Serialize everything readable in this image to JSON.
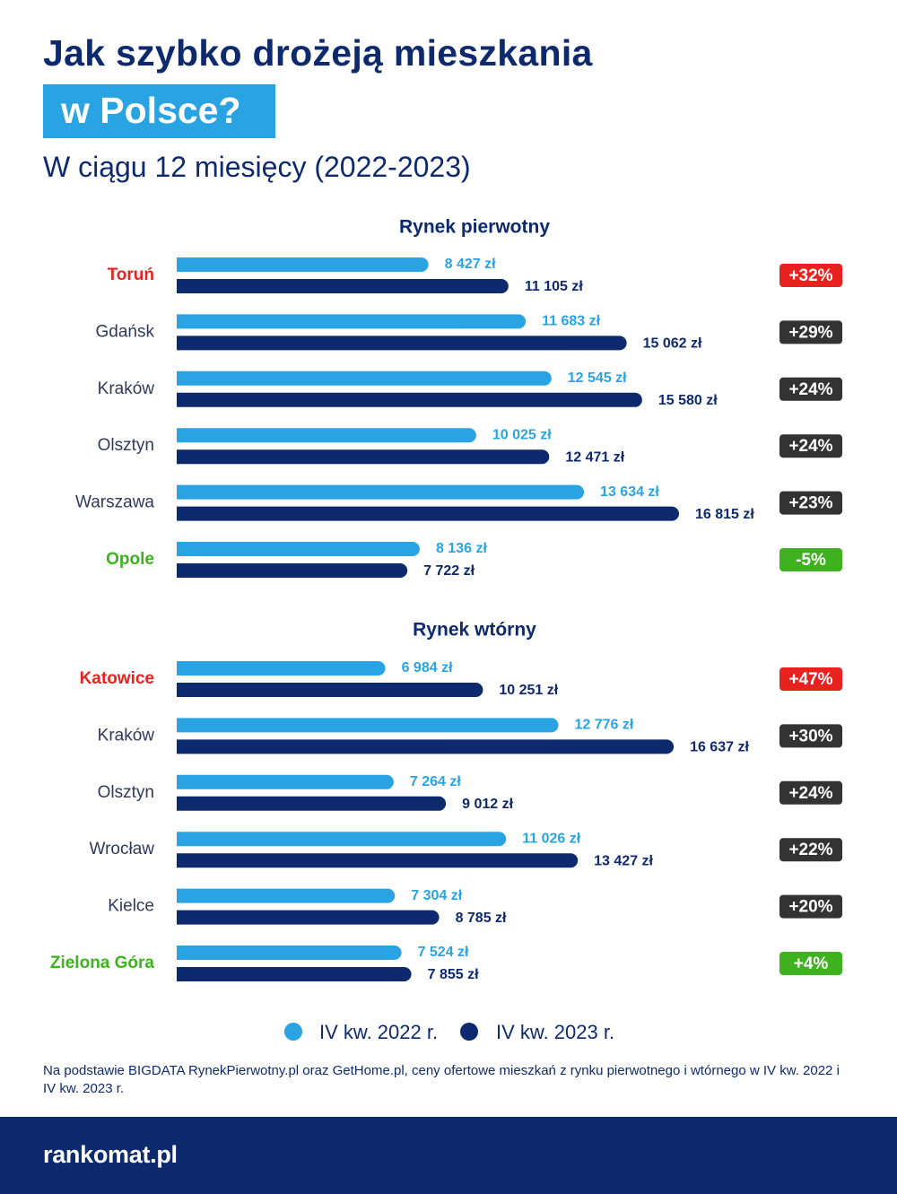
{
  "header": {
    "title_line1": "Jak szybko drożeją mieszkania",
    "title_line2": "w Polsce?",
    "subtitle": "W ciągu 12 miesięcy (2022-2023)"
  },
  "colors": {
    "bar_2022": "#2aa3e3",
    "bar_2023": "#0e2a6e",
    "highlight_up": "#e8231f",
    "highlight_down": "#3fb21f",
    "badge_neutral": "#333333"
  },
  "chart_data": {
    "type": "bar",
    "orientation": "horizontal",
    "value_unit": "zł",
    "legend": [
      "IV kw. 2022 r.",
      "IV kw. 2023 r."
    ],
    "groups": [
      {
        "title": "Rynek pierwotny",
        "rows": [
          {
            "city": "Toruń",
            "v2022": 8427,
            "v2023": 11105,
            "label2022": "8 427 zł",
            "label2023": "11 105 zł",
            "change": "+32%",
            "highlight": "up"
          },
          {
            "city": "Gdańsk",
            "v2022": 11683,
            "v2023": 15062,
            "label2022": "11 683 zł",
            "label2023": "15 062 zł",
            "change": "+29%",
            "highlight": "none"
          },
          {
            "city": "Kraków",
            "v2022": 12545,
            "v2023": 15580,
            "label2022": "12 545 zł",
            "label2023": "15 580 zł",
            "change": "+24%",
            "highlight": "none"
          },
          {
            "city": "Olsztyn",
            "v2022": 10025,
            "v2023": 12471,
            "label2022": "10 025 zł",
            "label2023": "12 471 zł",
            "change": "+24%",
            "highlight": "none"
          },
          {
            "city": "Warszawa",
            "v2022": 13634,
            "v2023": 16815,
            "label2022": "13 634 zł",
            "label2023": "16 815 zł",
            "change": "+23%",
            "highlight": "none"
          },
          {
            "city": "Opole",
            "v2022": 8136,
            "v2023": 7722,
            "label2022": "8 136 zł",
            "label2023": "7 722 zł",
            "change": "-5%",
            "highlight": "down"
          }
        ]
      },
      {
        "title": "Rynek wtórny",
        "rows": [
          {
            "city": "Katowice",
            "v2022": 6984,
            "v2023": 10251,
            "label2022": "6 984 zł",
            "label2023": "10 251 zł",
            "change": "+47%",
            "highlight": "up"
          },
          {
            "city": "Kraków",
            "v2022": 12776,
            "v2023": 16637,
            "label2022": "12 776 zł",
            "label2023": "16 637 zł",
            "change": "+30%",
            "highlight": "none"
          },
          {
            "city": "Olsztyn",
            "v2022": 7264,
            "v2023": 9012,
            "label2022": "7 264 zł",
            "label2023": "9 012 zł",
            "change": "+24%",
            "highlight": "none"
          },
          {
            "city": "Wrocław",
            "v2022": 11026,
            "v2023": 13427,
            "label2022": "11 026 zł",
            "label2023": "13 427 zł",
            "change": "+22%",
            "highlight": "none"
          },
          {
            "city": "Kielce",
            "v2022": 7304,
            "v2023": 8785,
            "label2022": "7 304 zł",
            "label2023": "8 785 zł",
            "change": "+20%",
            "highlight": "none"
          },
          {
            "city": "Zielona Góra",
            "v2022": 7524,
            "v2023": 7855,
            "label2022": "7 524 zł",
            "label2023": "7 855 zł",
            "change": "+4%",
            "highlight": "down"
          }
        ]
      }
    ]
  },
  "legend": {
    "label_2022": "IV kw. 2022 r.",
    "label_2023": "IV kw. 2023 r."
  },
  "source_note": "Na podstawie BIGDATA RynekPierwotny.pl oraz GetHome.pl, ceny ofertowe mieszkań z rynku pierwotnego i wtórnego w IV kw. 2022 i IV kw. 2023 r.",
  "footer": {
    "logo_text": "rankomat.pl"
  }
}
